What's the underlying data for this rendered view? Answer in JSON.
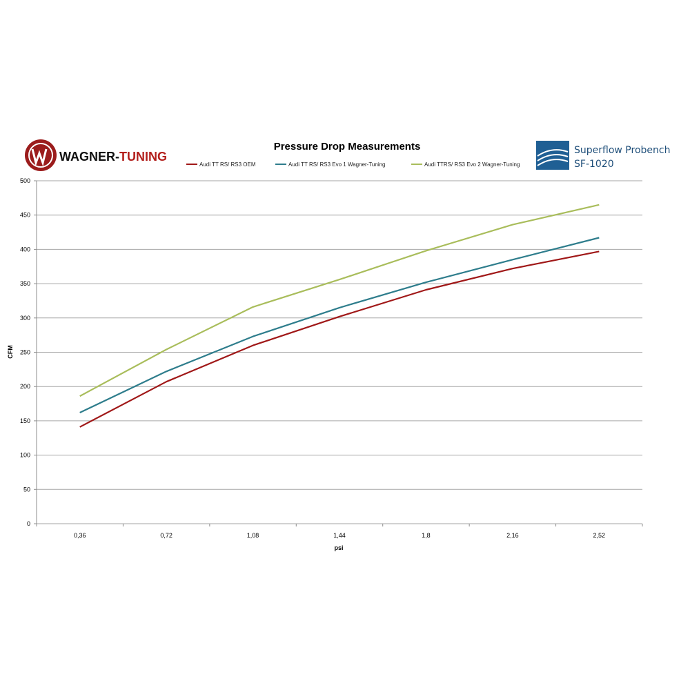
{
  "logos": {
    "left_part1": "WAGNER-",
    "left_part2": "TUNING",
    "right_line1": "Superflow Probench",
    "right_line2": "SF-1020"
  },
  "colors": {
    "grid": "#a6a6a6",
    "axis": "#8c8c8c",
    "wagner_red": "#9b1c1c",
    "superflow_blue": "#1f5f94"
  },
  "chart_data": {
    "type": "line",
    "title": "Pressure Drop Measurements",
    "xlabel": "psi",
    "ylabel": "CFM",
    "categories": [
      "0,36",
      "0,72",
      "1,08",
      "1,44",
      "1,8",
      "2,16",
      "2,52"
    ],
    "ylim": [
      0,
      500
    ],
    "yticks": [
      0,
      50,
      100,
      150,
      200,
      250,
      300,
      350,
      400,
      450,
      500
    ],
    "grid": true,
    "legend_position": "top",
    "series": [
      {
        "name": "Audi TT RS/ RS3  OEM",
        "color": "#a01818",
        "values": [
          141,
          207,
          260,
          302,
          341,
          372,
          397
        ]
      },
      {
        "name": "Audi TT RS/ RS3 Evo 1 Wagner-Tuning",
        "color": "#2e7d8c",
        "values": [
          162,
          222,
          273,
          315,
          352,
          385,
          417
        ]
      },
      {
        "name": "Audi TTRS/ RS3 Evo 2 Wagner-Tuning",
        "color": "#a9bd5b",
        "values": [
          186,
          254,
          316,
          356,
          398,
          436,
          465
        ]
      }
    ]
  }
}
